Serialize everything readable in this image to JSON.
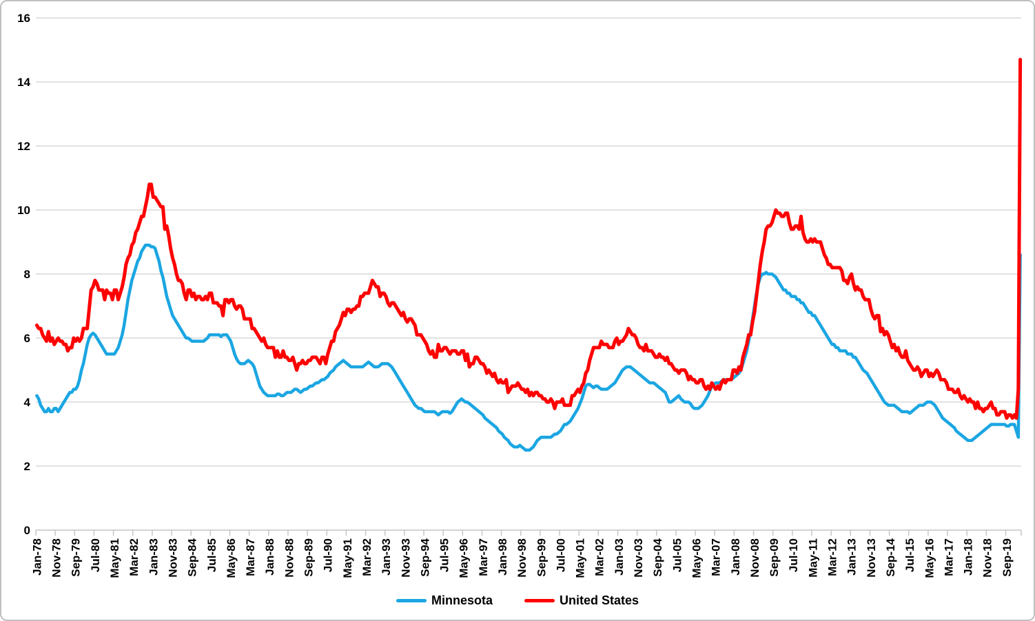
{
  "chart_data": {
    "type": "line",
    "title": "",
    "xlabel": "",
    "ylabel": "",
    "ylim": [
      0,
      16
    ],
    "y_ticks": [
      0,
      2,
      4,
      6,
      8,
      10,
      12,
      14,
      16
    ],
    "grid": "horizontal",
    "legend_position": "bottom-center",
    "x_unit": "month",
    "x_start": "Jan-78",
    "x_end": "Apr-20",
    "x_tick_interval_months": 10,
    "x_tick_labels": [
      "Jan-78",
      "Nov-78",
      "Sep-79",
      "Jul-80",
      "May-81",
      "Mar-82",
      "Jan-83",
      "Nov-83",
      "Sep-84",
      "Jul-85",
      "May-86",
      "Mar-87",
      "Jan-88",
      "Nov-88",
      "Sep-89",
      "Jul-90",
      "May-91",
      "Mar-92",
      "Jan-93",
      "Nov-93",
      "Sep-94",
      "Jul-95",
      "May-96",
      "Mar-97",
      "Jan-98",
      "Nov-98",
      "Sep-99",
      "Jul-00",
      "May-01",
      "Mar-02",
      "Jan-03",
      "Nov-03",
      "Sep-04",
      "Jul-05",
      "May-06",
      "Mar-07",
      "Jan-08",
      "Nov-08",
      "Sep-09",
      "Jul-10",
      "May-11",
      "Mar-12",
      "Jan-13",
      "Nov-13",
      "Sep-14",
      "Jul-15",
      "May-16",
      "Mar-17",
      "Jan-18",
      "Nov-18",
      "Sep-19"
    ],
    "series": [
      {
        "name": "Minnesota",
        "color": "#1BA6E2",
        "values": [
          4.2,
          4.1,
          3.9,
          3.8,
          3.7,
          3.7,
          3.8,
          3.7,
          3.7,
          3.8,
          3.8,
          3.7,
          3.8,
          3.9,
          4.0,
          4.1,
          4.2,
          4.3,
          4.3,
          4.4,
          4.4,
          4.5,
          4.7,
          5.0,
          5.2,
          5.5,
          5.8,
          6.0,
          6.1,
          6.15,
          6.1,
          6.0,
          5.9,
          5.8,
          5.7,
          5.6,
          5.5,
          5.5,
          5.5,
          5.5,
          5.5,
          5.6,
          5.7,
          5.9,
          6.1,
          6.4,
          6.8,
          7.2,
          7.5,
          7.8,
          8.0,
          8.2,
          8.4,
          8.5,
          8.7,
          8.8,
          8.9,
          8.9,
          8.9,
          8.85,
          8.85,
          8.8,
          8.6,
          8.4,
          8.1,
          7.9,
          7.6,
          7.3,
          7.1,
          6.9,
          6.7,
          6.6,
          6.5,
          6.4,
          6.3,
          6.2,
          6.1,
          6.0,
          6.0,
          5.95,
          5.9,
          5.9,
          5.9,
          5.9,
          5.9,
          5.9,
          5.9,
          5.95,
          6.0,
          6.1,
          6.1,
          6.1,
          6.1,
          6.1,
          6.1,
          6.05,
          6.1,
          6.1,
          6.1,
          6.0,
          5.9,
          5.7,
          5.5,
          5.35,
          5.25,
          5.2,
          5.2,
          5.2,
          5.25,
          5.3,
          5.25,
          5.2,
          5.1,
          4.9,
          4.7,
          4.5,
          4.4,
          4.3,
          4.25,
          4.2,
          4.2,
          4.2,
          4.2,
          4.2,
          4.25,
          4.25,
          4.2,
          4.2,
          4.25,
          4.3,
          4.3,
          4.3,
          4.35,
          4.4,
          4.4,
          4.35,
          4.3,
          4.35,
          4.4,
          4.4,
          4.45,
          4.5,
          4.5,
          4.55,
          4.6,
          4.6,
          4.65,
          4.7,
          4.7,
          4.75,
          4.8,
          4.9,
          4.95,
          5.0,
          5.1,
          5.15,
          5.2,
          5.25,
          5.3,
          5.25,
          5.2,
          5.15,
          5.1,
          5.1,
          5.1,
          5.1,
          5.1,
          5.1,
          5.1,
          5.15,
          5.2,
          5.25,
          5.2,
          5.15,
          5.1,
          5.1,
          5.1,
          5.15,
          5.2,
          5.2,
          5.2,
          5.2,
          5.15,
          5.1,
          5.0,
          4.9,
          4.8,
          4.7,
          4.6,
          4.5,
          4.4,
          4.3,
          4.2,
          4.1,
          4.0,
          3.9,
          3.85,
          3.8,
          3.8,
          3.75,
          3.7,
          3.7,
          3.7,
          3.7,
          3.7,
          3.7,
          3.65,
          3.6,
          3.65,
          3.7,
          3.7,
          3.7,
          3.7,
          3.65,
          3.7,
          3.8,
          3.9,
          4.0,
          4.05,
          4.1,
          4.05,
          4.0,
          4.0,
          3.95,
          3.9,
          3.85,
          3.8,
          3.75,
          3.7,
          3.65,
          3.6,
          3.5,
          3.45,
          3.4,
          3.35,
          3.3,
          3.25,
          3.2,
          3.1,
          3.05,
          3.0,
          2.9,
          2.85,
          2.8,
          2.7,
          2.65,
          2.6,
          2.6,
          2.6,
          2.65,
          2.6,
          2.55,
          2.5,
          2.5,
          2.5,
          2.55,
          2.6,
          2.7,
          2.8,
          2.85,
          2.9,
          2.9,
          2.9,
          2.9,
          2.9,
          2.9,
          2.95,
          3.0,
          3.0,
          3.05,
          3.1,
          3.2,
          3.3,
          3.3,
          3.35,
          3.4,
          3.5,
          3.6,
          3.7,
          3.8,
          3.95,
          4.1,
          4.3,
          4.5,
          4.55,
          4.55,
          4.5,
          4.45,
          4.5,
          4.5,
          4.45,
          4.4,
          4.4,
          4.4,
          4.4,
          4.45,
          4.5,
          4.55,
          4.6,
          4.7,
          4.8,
          4.9,
          5.0,
          5.05,
          5.1,
          5.1,
          5.1,
          5.05,
          5.0,
          4.95,
          4.9,
          4.85,
          4.8,
          4.75,
          4.7,
          4.65,
          4.6,
          4.6,
          4.6,
          4.55,
          4.5,
          4.45,
          4.4,
          4.35,
          4.3,
          4.15,
          4.0,
          4.0,
          4.05,
          4.1,
          4.15,
          4.2,
          4.1,
          4.05,
          4.0,
          4.0,
          4.0,
          3.95,
          3.85,
          3.8,
          3.8,
          3.8,
          3.85,
          3.9,
          4.0,
          4.1,
          4.2,
          4.35,
          4.5,
          4.55,
          4.6,
          4.6,
          4.6,
          4.65,
          4.7,
          4.7,
          4.7,
          4.7,
          4.7,
          4.75,
          4.8,
          4.85,
          4.9,
          5.0,
          5.2,
          5.4,
          5.6,
          5.9,
          6.2,
          6.6,
          7.0,
          7.4,
          7.7,
          7.9,
          8.0,
          8.0,
          8.05,
          8.0,
          8.0,
          8.0,
          7.95,
          7.9,
          7.8,
          7.7,
          7.6,
          7.5,
          7.5,
          7.4,
          7.4,
          7.3,
          7.3,
          7.3,
          7.2,
          7.2,
          7.1,
          7.1,
          7.0,
          6.9,
          6.8,
          6.8,
          6.7,
          6.7,
          6.6,
          6.5,
          6.4,
          6.3,
          6.2,
          6.1,
          6.0,
          5.9,
          5.8,
          5.8,
          5.7,
          5.7,
          5.6,
          5.6,
          5.6,
          5.6,
          5.5,
          5.5,
          5.5,
          5.4,
          5.4,
          5.3,
          5.2,
          5.1,
          5.0,
          4.95,
          4.9,
          4.8,
          4.7,
          4.6,
          4.5,
          4.4,
          4.3,
          4.2,
          4.1,
          4.0,
          3.95,
          3.9,
          3.9,
          3.9,
          3.9,
          3.85,
          3.8,
          3.75,
          3.7,
          3.7,
          3.7,
          3.7,
          3.65,
          3.7,
          3.75,
          3.8,
          3.85,
          3.9,
          3.9,
          3.9,
          3.95,
          4.0,
          4.0,
          4.0,
          3.95,
          3.9,
          3.8,
          3.7,
          3.6,
          3.5,
          3.45,
          3.4,
          3.35,
          3.3,
          3.25,
          3.2,
          3.1,
          3.05,
          3.0,
          2.95,
          2.9,
          2.85,
          2.8,
          2.8,
          2.8,
          2.85,
          2.9,
          2.95,
          3.0,
          3.05,
          3.1,
          3.15,
          3.2,
          3.25,
          3.3,
          3.3,
          3.3,
          3.3,
          3.3,
          3.3,
          3.3,
          3.3,
          3.25,
          3.25,
          3.3,
          3.3,
          3.3,
          3.1,
          2.9,
          8.6
        ]
      },
      {
        "name": "United States",
        "color": "#FF0000",
        "values": [
          6.4,
          6.3,
          6.3,
          6.1,
          6.0,
          5.9,
          6.2,
          5.9,
          6.0,
          5.8,
          5.9,
          6.0,
          5.9,
          5.9,
          5.8,
          5.8,
          5.6,
          5.7,
          5.7,
          6.0,
          5.9,
          6.0,
          5.9,
          6.0,
          6.3,
          6.3,
          6.3,
          6.9,
          7.5,
          7.6,
          7.8,
          7.7,
          7.5,
          7.5,
          7.5,
          7.2,
          7.5,
          7.4,
          7.4,
          7.2,
          7.5,
          7.5,
          7.2,
          7.4,
          7.6,
          7.9,
          8.3,
          8.5,
          8.6,
          8.9,
          9.0,
          9.3,
          9.4,
          9.6,
          9.8,
          9.8,
          10.1,
          10.4,
          10.8,
          10.8,
          10.4,
          10.4,
          10.3,
          10.2,
          10.1,
          10.1,
          9.4,
          9.5,
          9.2,
          8.8,
          8.5,
          8.3,
          8.0,
          7.8,
          7.8,
          7.7,
          7.4,
          7.2,
          7.5,
          7.5,
          7.3,
          7.4,
          7.2,
          7.3,
          7.3,
          7.2,
          7.2,
          7.3,
          7.2,
          7.4,
          7.4,
          7.1,
          7.1,
          7.1,
          7.0,
          7.0,
          6.7,
          7.2,
          7.2,
          7.1,
          7.2,
          7.2,
          7.0,
          6.9,
          7.0,
          7.0,
          6.9,
          6.6,
          6.6,
          6.6,
          6.6,
          6.3,
          6.3,
          6.2,
          6.1,
          6.0,
          5.9,
          6.0,
          5.8,
          5.7,
          5.7,
          5.7,
          5.7,
          5.4,
          5.6,
          5.4,
          5.4,
          5.6,
          5.4,
          5.4,
          5.3,
          5.3,
          5.4,
          5.2,
          5.0,
          5.2,
          5.2,
          5.3,
          5.2,
          5.2,
          5.3,
          5.3,
          5.4,
          5.4,
          5.4,
          5.3,
          5.2,
          5.4,
          5.4,
          5.2,
          5.5,
          5.7,
          5.9,
          5.9,
          6.2,
          6.3,
          6.4,
          6.6,
          6.8,
          6.7,
          6.9,
          6.9,
          6.8,
          6.9,
          6.9,
          7.0,
          7.0,
          7.3,
          7.3,
          7.4,
          7.4,
          7.4,
          7.6,
          7.8,
          7.7,
          7.6,
          7.6,
          7.3,
          7.4,
          7.4,
          7.3,
          7.1,
          7.0,
          7.1,
          7.1,
          7.0,
          6.9,
          6.8,
          6.7,
          6.8,
          6.6,
          6.5,
          6.6,
          6.6,
          6.5,
          6.4,
          6.1,
          6.1,
          6.1,
          6.0,
          5.9,
          5.8,
          5.6,
          5.5,
          5.6,
          5.4,
          5.4,
          5.8,
          5.6,
          5.6,
          5.7,
          5.7,
          5.6,
          5.5,
          5.6,
          5.6,
          5.6,
          5.5,
          5.5,
          5.6,
          5.6,
          5.3,
          5.5,
          5.1,
          5.2,
          5.2,
          5.4,
          5.4,
          5.3,
          5.2,
          5.2,
          5.1,
          4.9,
          5.0,
          4.9,
          4.8,
          4.9,
          4.7,
          4.6,
          4.7,
          4.6,
          4.6,
          4.7,
          4.3,
          4.4,
          4.5,
          4.5,
          4.5,
          4.6,
          4.5,
          4.4,
          4.4,
          4.3,
          4.4,
          4.2,
          4.3,
          4.2,
          4.3,
          4.3,
          4.2,
          4.2,
          4.1,
          4.1,
          4.0,
          4.0,
          4.1,
          4.0,
          3.8,
          4.0,
          4.0,
          4.0,
          4.1,
          3.9,
          3.9,
          3.9,
          3.9,
          4.2,
          4.2,
          4.3,
          4.4,
          4.3,
          4.5,
          4.6,
          4.9,
          5.0,
          5.3,
          5.5,
          5.7,
          5.7,
          5.7,
          5.7,
          5.9,
          5.8,
          5.8,
          5.8,
          5.7,
          5.7,
          5.7,
          5.9,
          6.0,
          5.8,
          5.9,
          5.9,
          6.0,
          6.1,
          6.3,
          6.2,
          6.1,
          6.1,
          6.0,
          5.8,
          5.7,
          5.7,
          5.6,
          5.8,
          5.6,
          5.6,
          5.6,
          5.5,
          5.4,
          5.4,
          5.5,
          5.4,
          5.4,
          5.3,
          5.4,
          5.2,
          5.2,
          5.1,
          5.0,
          5.0,
          4.9,
          5.0,
          5.0,
          5.0,
          4.9,
          4.7,
          4.8,
          4.7,
          4.7,
          4.6,
          4.6,
          4.7,
          4.7,
          4.5,
          4.4,
          4.5,
          4.4,
          4.6,
          4.5,
          4.4,
          4.5,
          4.4,
          4.6,
          4.7,
          4.6,
          4.7,
          4.7,
          4.7,
          5.0,
          5.0,
          4.9,
          5.1,
          5.0,
          5.4,
          5.6,
          5.8,
          6.1,
          6.1,
          6.5,
          6.8,
          7.3,
          7.8,
          8.3,
          8.7,
          9.0,
          9.4,
          9.5,
          9.5,
          9.6,
          9.8,
          10.0,
          9.9,
          9.9,
          9.8,
          9.8,
          9.9,
          9.9,
          9.6,
          9.4,
          9.4,
          9.5,
          9.5,
          9.4,
          9.8,
          9.3,
          9.1,
          9.0,
          9.0,
          9.1,
          9.0,
          9.1,
          9.0,
          9.0,
          9.0,
          8.8,
          8.6,
          8.5,
          8.3,
          8.3,
          8.2,
          8.2,
          8.2,
          8.2,
          8.2,
          8.1,
          7.8,
          7.8,
          7.7,
          7.9,
          8.0,
          7.7,
          7.5,
          7.6,
          7.5,
          7.5,
          7.3,
          7.2,
          7.2,
          7.2,
          6.9,
          6.7,
          6.6,
          6.7,
          6.7,
          6.2,
          6.3,
          6.1,
          6.2,
          6.1,
          5.9,
          5.7,
          5.8,
          5.6,
          5.7,
          5.5,
          5.4,
          5.4,
          5.6,
          5.3,
          5.2,
          5.1,
          5.0,
          5.0,
          5.1,
          5.0,
          4.8,
          4.9,
          5.0,
          5.0,
          4.8,
          4.9,
          4.8,
          4.9,
          5.0,
          4.9,
          4.7,
          4.7,
          4.7,
          4.6,
          4.4,
          4.4,
          4.4,
          4.3,
          4.3,
          4.4,
          4.2,
          4.1,
          4.2,
          4.1,
          4.0,
          4.1,
          4.0,
          4.0,
          3.8,
          4.0,
          3.8,
          3.8,
          3.7,
          3.8,
          3.8,
          3.9,
          4.0,
          3.8,
          3.8,
          3.6,
          3.6,
          3.7,
          3.7,
          3.7,
          3.5,
          3.6,
          3.6,
          3.5,
          3.6,
          3.5,
          4.4,
          14.7
        ]
      }
    ]
  },
  "legend": {
    "minnesota_label": "Minnesota",
    "united_states_label": "United States"
  },
  "colors": {
    "minnesota": "#1BA6E2",
    "united_states": "#FF0000",
    "gridline": "#D9D9D9",
    "axis": "#C6C6C6",
    "text": "#000000",
    "frame_border": "#BFBFBF",
    "background": "#FFFFFF"
  }
}
